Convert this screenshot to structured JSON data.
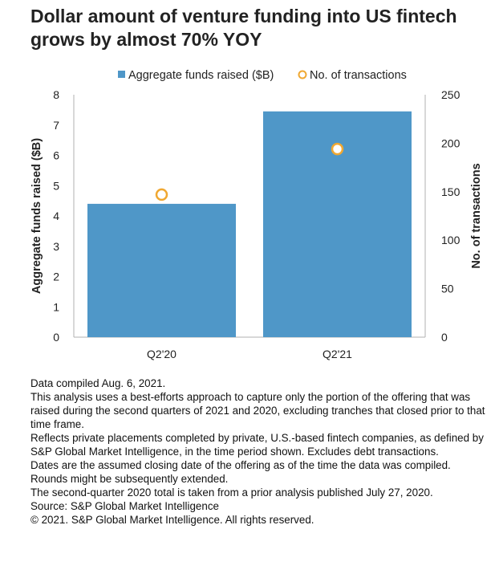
{
  "title_lines": [
    "Dollar amount of venture funding into US fintech",
    "grows by almost 70% YOY"
  ],
  "colors": {
    "bar": "#4f97c8",
    "marker": "#f0a832",
    "axis": "#b0b0b0"
  },
  "chart_data": {
    "type": "bar",
    "categories": [
      "Q2'20",
      "Q2'21"
    ],
    "series": [
      {
        "name": "Aggregate funds raised ($B)",
        "type": "bar",
        "axis": "left",
        "values": [
          4.4,
          7.45
        ]
      },
      {
        "name": "No. of transactions",
        "type": "scatter",
        "axis": "right",
        "values": [
          147,
          194
        ]
      }
    ],
    "ylabel": "Aggregate funds raised ($B)",
    "y2label": "No. of transactions",
    "ylim": [
      0,
      8
    ],
    "y2lim": [
      0,
      250
    ],
    "yticks": [
      0,
      1,
      2,
      3,
      4,
      5,
      6,
      7,
      8
    ],
    "y2ticks": [
      0,
      50,
      100,
      150,
      200,
      250
    ],
    "legend_position": "top",
    "grid": false
  },
  "notes": [
    "Data compiled Aug. 6, 2021.",
    "This analysis uses a best-efforts approach to capture only the portion of the offering that was raised during the second quarters of 2021 and 2020, excluding tranches that closed prior to that time frame.",
    "Reflects private placements completed by private, U.S.-based fintech companies, as defined by S&P Global Market Intelligence, in the time period shown. Excludes debt transactions.",
    "Dates are the assumed closing date of the offering as of the time the data was compiled. Rounds might be subsequently extended.",
    "The second-quarter 2020 total is taken from a prior analysis published July 27, 2020.",
    "Source: S&P Global Market Intelligence",
    "© 2021. S&P Global Market Intelligence. All rights reserved."
  ]
}
